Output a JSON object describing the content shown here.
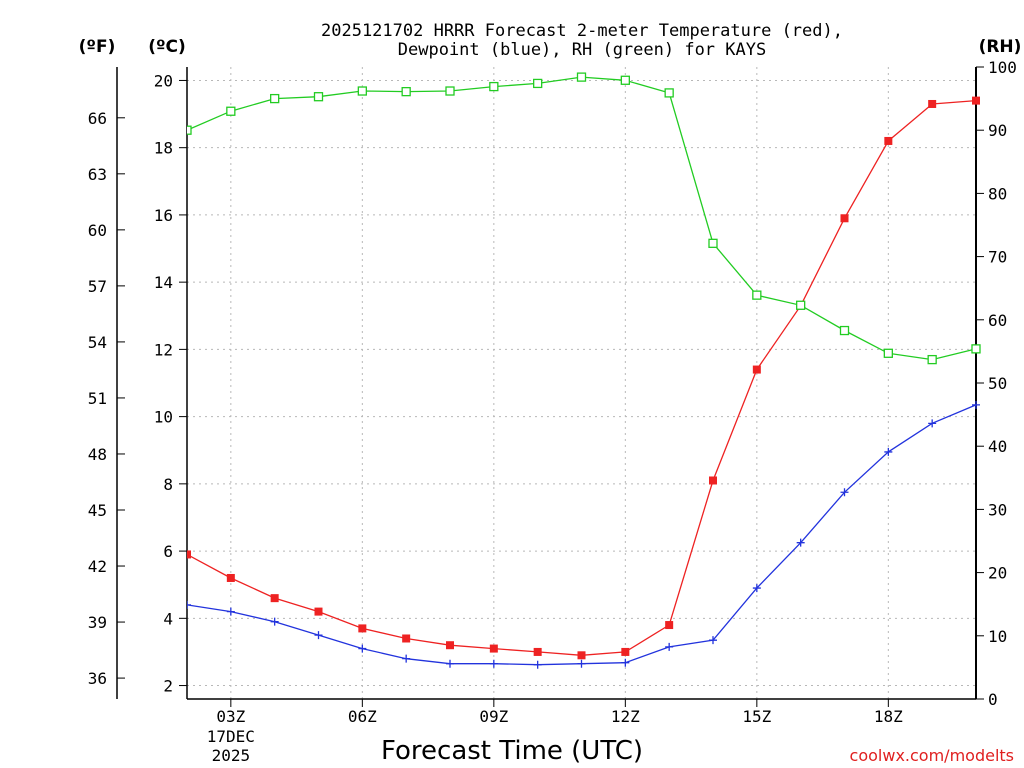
{
  "chart_data": {
    "type": "line",
    "title_line1": "2025121702 HRRR Forecast 2-meter Temperature (red),",
    "title_line2": "Dewpoint (blue), RH (green) for KAYS",
    "xlabel": "Forecast Time (UTC)",
    "credit": "coolwx.com/modelts",
    "axes": {
      "fahrenheit": {
        "unit_label": "(ºF)",
        "ticks": [
          36,
          39,
          42,
          45,
          48,
          51,
          54,
          57,
          60,
          63,
          66
        ]
      },
      "celsius": {
        "unit_label": "(ºC)",
        "ticks": [
          2,
          4,
          6,
          8,
          10,
          12,
          14,
          16,
          18,
          20
        ],
        "ylim": [
          1.6,
          20.4
        ]
      },
      "rh": {
        "unit_label": "(RH)",
        "ticks": [
          0,
          10,
          20,
          30,
          40,
          50,
          60,
          70,
          80,
          90,
          100
        ],
        "ylim": [
          0,
          100
        ]
      }
    },
    "x_ticks": [
      {
        "hour": 3,
        "label": "03Z",
        "date_line1": "17DEC",
        "date_line2": "2025"
      },
      {
        "hour": 6,
        "label": "06Z"
      },
      {
        "hour": 9,
        "label": "09Z"
      },
      {
        "hour": 12,
        "label": "12Z"
      },
      {
        "hour": 15,
        "label": "15Z"
      },
      {
        "hour": 18,
        "label": "18Z"
      }
    ],
    "xlim": [
      2,
      20
    ],
    "grid": true,
    "x": [
      2,
      3,
      4,
      5,
      6,
      7,
      8,
      9,
      10,
      11,
      12,
      13,
      14,
      15,
      16,
      17,
      18,
      19,
      20
    ],
    "series": [
      {
        "name": "Temperature",
        "axis": "celsius",
        "color": "#ee2222",
        "marker": "filled-square",
        "values": [
          5.9,
          5.2,
          4.6,
          4.2,
          3.7,
          3.4,
          3.2,
          3.1,
          3.0,
          2.9,
          3.0,
          3.8,
          8.1,
          11.4,
          13.3,
          15.9,
          18.2,
          19.3,
          19.4
        ]
      },
      {
        "name": "Dewpoint",
        "axis": "celsius",
        "color": "#2233dd",
        "marker": "plus",
        "values": [
          4.4,
          4.2,
          3.9,
          3.5,
          3.1,
          2.8,
          2.65,
          2.65,
          2.62,
          2.65,
          2.68,
          3.15,
          3.35,
          4.9,
          6.25,
          7.75,
          8.95,
          9.8,
          10.35
        ]
      },
      {
        "name": "RH",
        "axis": "rh",
        "color": "#22cc22",
        "marker": "open-square",
        "values": [
          90,
          93,
          95,
          95.3,
          96.2,
          96.1,
          96.2,
          96.9,
          97.4,
          98.4,
          97.9,
          95.9,
          72.1,
          63.9,
          62.3,
          58.3,
          54.7,
          53.7,
          55.4
        ]
      }
    ]
  }
}
